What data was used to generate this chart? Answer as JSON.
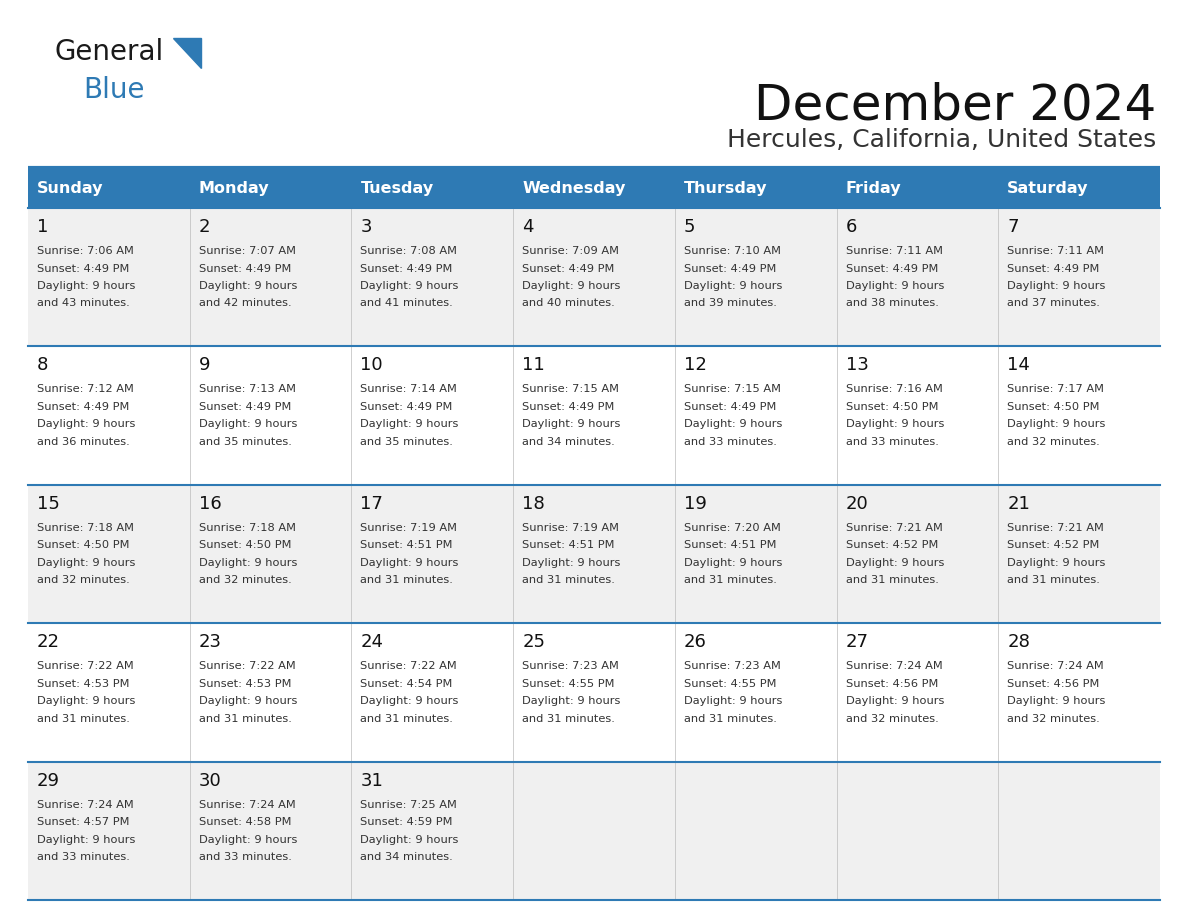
{
  "title": "December 2024",
  "subtitle": "Hercules, California, United States",
  "header_bg_color": "#2E7AB4",
  "header_text_color": "#FFFFFF",
  "cell_bg_even": "#F0F0F0",
  "cell_bg_odd": "#FFFFFF",
  "line_color": "#2E7AB4",
  "day_names": [
    "Sunday",
    "Monday",
    "Tuesday",
    "Wednesday",
    "Thursday",
    "Friday",
    "Saturday"
  ],
  "calendar_data": [
    [
      {
        "day": "1",
        "sunrise": "7:06 AM",
        "sunset": "4:49 PM",
        "daylight_line1": "9 hours",
        "daylight_line2": "and 43 minutes."
      },
      {
        "day": "2",
        "sunrise": "7:07 AM",
        "sunset": "4:49 PM",
        "daylight_line1": "9 hours",
        "daylight_line2": "and 42 minutes."
      },
      {
        "day": "3",
        "sunrise": "7:08 AM",
        "sunset": "4:49 PM",
        "daylight_line1": "9 hours",
        "daylight_line2": "and 41 minutes."
      },
      {
        "day": "4",
        "sunrise": "7:09 AM",
        "sunset": "4:49 PM",
        "daylight_line1": "9 hours",
        "daylight_line2": "and 40 minutes."
      },
      {
        "day": "5",
        "sunrise": "7:10 AM",
        "sunset": "4:49 PM",
        "daylight_line1": "9 hours",
        "daylight_line2": "and 39 minutes."
      },
      {
        "day": "6",
        "sunrise": "7:11 AM",
        "sunset": "4:49 PM",
        "daylight_line1": "9 hours",
        "daylight_line2": "and 38 minutes."
      },
      {
        "day": "7",
        "sunrise": "7:11 AM",
        "sunset": "4:49 PM",
        "daylight_line1": "9 hours",
        "daylight_line2": "and 37 minutes."
      }
    ],
    [
      {
        "day": "8",
        "sunrise": "7:12 AM",
        "sunset": "4:49 PM",
        "daylight_line1": "9 hours",
        "daylight_line2": "and 36 minutes."
      },
      {
        "day": "9",
        "sunrise": "7:13 AM",
        "sunset": "4:49 PM",
        "daylight_line1": "9 hours",
        "daylight_line2": "and 35 minutes."
      },
      {
        "day": "10",
        "sunrise": "7:14 AM",
        "sunset": "4:49 PM",
        "daylight_line1": "9 hours",
        "daylight_line2": "and 35 minutes."
      },
      {
        "day": "11",
        "sunrise": "7:15 AM",
        "sunset": "4:49 PM",
        "daylight_line1": "9 hours",
        "daylight_line2": "and 34 minutes."
      },
      {
        "day": "12",
        "sunrise": "7:15 AM",
        "sunset": "4:49 PM",
        "daylight_line1": "9 hours",
        "daylight_line2": "and 33 minutes."
      },
      {
        "day": "13",
        "sunrise": "7:16 AM",
        "sunset": "4:50 PM",
        "daylight_line1": "9 hours",
        "daylight_line2": "and 33 minutes."
      },
      {
        "day": "14",
        "sunrise": "7:17 AM",
        "sunset": "4:50 PM",
        "daylight_line1": "9 hours",
        "daylight_line2": "and 32 minutes."
      }
    ],
    [
      {
        "day": "15",
        "sunrise": "7:18 AM",
        "sunset": "4:50 PM",
        "daylight_line1": "9 hours",
        "daylight_line2": "and 32 minutes."
      },
      {
        "day": "16",
        "sunrise": "7:18 AM",
        "sunset": "4:50 PM",
        "daylight_line1": "9 hours",
        "daylight_line2": "and 32 minutes."
      },
      {
        "day": "17",
        "sunrise": "7:19 AM",
        "sunset": "4:51 PM",
        "daylight_line1": "9 hours",
        "daylight_line2": "and 31 minutes."
      },
      {
        "day": "18",
        "sunrise": "7:19 AM",
        "sunset": "4:51 PM",
        "daylight_line1": "9 hours",
        "daylight_line2": "and 31 minutes."
      },
      {
        "day": "19",
        "sunrise": "7:20 AM",
        "sunset": "4:51 PM",
        "daylight_line1": "9 hours",
        "daylight_line2": "and 31 minutes."
      },
      {
        "day": "20",
        "sunrise": "7:21 AM",
        "sunset": "4:52 PM",
        "daylight_line1": "9 hours",
        "daylight_line2": "and 31 minutes."
      },
      {
        "day": "21",
        "sunrise": "7:21 AM",
        "sunset": "4:52 PM",
        "daylight_line1": "9 hours",
        "daylight_line2": "and 31 minutes."
      }
    ],
    [
      {
        "day": "22",
        "sunrise": "7:22 AM",
        "sunset": "4:53 PM",
        "daylight_line1": "9 hours",
        "daylight_line2": "and 31 minutes."
      },
      {
        "day": "23",
        "sunrise": "7:22 AM",
        "sunset": "4:53 PM",
        "daylight_line1": "9 hours",
        "daylight_line2": "and 31 minutes."
      },
      {
        "day": "24",
        "sunrise": "7:22 AM",
        "sunset": "4:54 PM",
        "daylight_line1": "9 hours",
        "daylight_line2": "and 31 minutes."
      },
      {
        "day": "25",
        "sunrise": "7:23 AM",
        "sunset": "4:55 PM",
        "daylight_line1": "9 hours",
        "daylight_line2": "and 31 minutes."
      },
      {
        "day": "26",
        "sunrise": "7:23 AM",
        "sunset": "4:55 PM",
        "daylight_line1": "9 hours",
        "daylight_line2": "and 31 minutes."
      },
      {
        "day": "27",
        "sunrise": "7:24 AM",
        "sunset": "4:56 PM",
        "daylight_line1": "9 hours",
        "daylight_line2": "and 32 minutes."
      },
      {
        "day": "28",
        "sunrise": "7:24 AM",
        "sunset": "4:56 PM",
        "daylight_line1": "9 hours",
        "daylight_line2": "and 32 minutes."
      }
    ],
    [
      {
        "day": "29",
        "sunrise": "7:24 AM",
        "sunset": "4:57 PM",
        "daylight_line1": "9 hours",
        "daylight_line2": "and 33 minutes."
      },
      {
        "day": "30",
        "sunrise": "7:24 AM",
        "sunset": "4:58 PM",
        "daylight_line1": "9 hours",
        "daylight_line2": "and 33 minutes."
      },
      {
        "day": "31",
        "sunrise": "7:25 AM",
        "sunset": "4:59 PM",
        "daylight_line1": "9 hours",
        "daylight_line2": "and 34 minutes."
      },
      null,
      null,
      null,
      null
    ]
  ],
  "logo_text1": "General",
  "logo_text2": "Blue",
  "logo_text1_color": "#1a1a1a",
  "logo_text2_color": "#2E7AB4",
  "logo_triangle_color": "#2E7AB4",
  "fig_width": 11.88,
  "fig_height": 9.18,
  "dpi": 100
}
